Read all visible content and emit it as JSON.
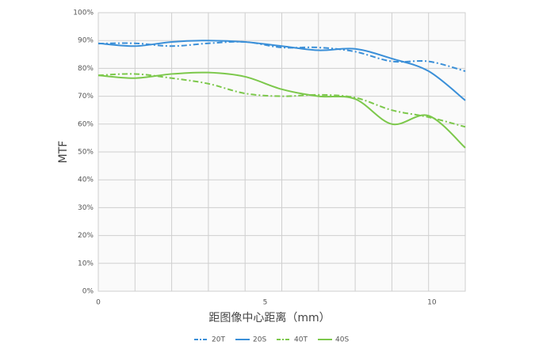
{
  "chart_data": {
    "type": "line",
    "x_label": "距图像中心距离（mm）",
    "y_label": "MTF",
    "x": [
      0,
      1.1,
      2.2,
      3.3,
      4.4,
      5.5,
      6.6,
      7.7,
      8.8,
      9.9,
      11
    ],
    "xlim": [
      0,
      11
    ],
    "xticks": [
      0,
      5,
      10
    ],
    "ylim": [
      0,
      100
    ],
    "yticks": [
      {
        "value": 0,
        "label": "0%"
      },
      {
        "value": 10,
        "label": "10%"
      },
      {
        "value": 20,
        "label": "20%"
      },
      {
        "value": 30,
        "label": "30%"
      },
      {
        "value": 40,
        "label": "40%"
      },
      {
        "value": 50,
        "label": "50%"
      },
      {
        "value": 60,
        "label": "60%"
      },
      {
        "value": 70,
        "label": "70%"
      },
      {
        "value": 80,
        "label": "80%"
      },
      {
        "value": 90,
        "label": "90%"
      },
      {
        "value": 100,
        "label": "100%"
      }
    ],
    "grid": true,
    "legend": "bottom",
    "series": [
      {
        "name": "20T",
        "color": "#3a8fd8",
        "dashed": true,
        "values": [
          88.9,
          89,
          88,
          89,
          89.5,
          87.5,
          87.5,
          86,
          82.5,
          82.5,
          79
        ]
      },
      {
        "name": "20S",
        "color": "#3a8fd8",
        "dashed": false,
        "values": [
          89,
          88,
          89.5,
          90,
          89.5,
          88,
          86.5,
          87,
          83.5,
          79,
          68.5
        ]
      },
      {
        "name": "40T",
        "color": "#7cc84b",
        "dashed": true,
        "values": [
          77.5,
          78,
          76.5,
          74.5,
          71,
          70,
          70.5,
          69.5,
          65,
          62.5,
          59
        ]
      },
      {
        "name": "40S",
        "color": "#7cc84b",
        "dashed": false,
        "values": [
          77.5,
          76.5,
          78,
          78.5,
          77,
          72.5,
          70,
          69,
          60,
          63,
          51.5
        ]
      }
    ]
  }
}
